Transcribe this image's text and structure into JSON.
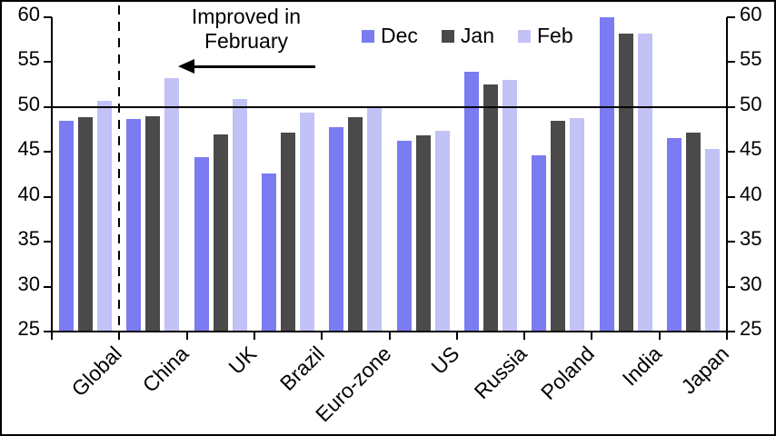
{
  "chart_data": {
    "type": "bar",
    "title": "",
    "categories": [
      "Global",
      "China",
      "UK",
      "Brazil",
      "Euro-zone",
      "US",
      "Russia",
      "Poland",
      "India",
      "Japan"
    ],
    "series": [
      {
        "name": "Dec",
        "color": "#7b7bf2",
        "values": [
          48.5,
          48.7,
          44.4,
          42.6,
          47.8,
          46.2,
          53.9,
          44.6,
          60.0,
          46.5
        ]
      },
      {
        "name": "Jan",
        "color": "#4a4a4a",
        "values": [
          48.9,
          49.0,
          47.0,
          47.2,
          48.9,
          46.8,
          52.5,
          48.5,
          58.2,
          47.2
        ]
      },
      {
        "name": "Feb",
        "color": "#c2c2f6",
        "values": [
          50.7,
          53.2,
          50.9,
          49.4,
          50.0,
          47.4,
          53.0,
          48.8,
          58.2,
          45.3
        ]
      }
    ],
    "ylim": [
      25,
      60
    ],
    "yticks": [
      25,
      30,
      35,
      40,
      45,
      50,
      55,
      60
    ],
    "dual_y_axis": true,
    "reference_line": 50,
    "separator_after_category": "Global",
    "grid": false,
    "legend_position": "top",
    "annotation": {
      "text_line1": "Improved in",
      "text_line2": "February",
      "arrow_direction": "left"
    }
  }
}
